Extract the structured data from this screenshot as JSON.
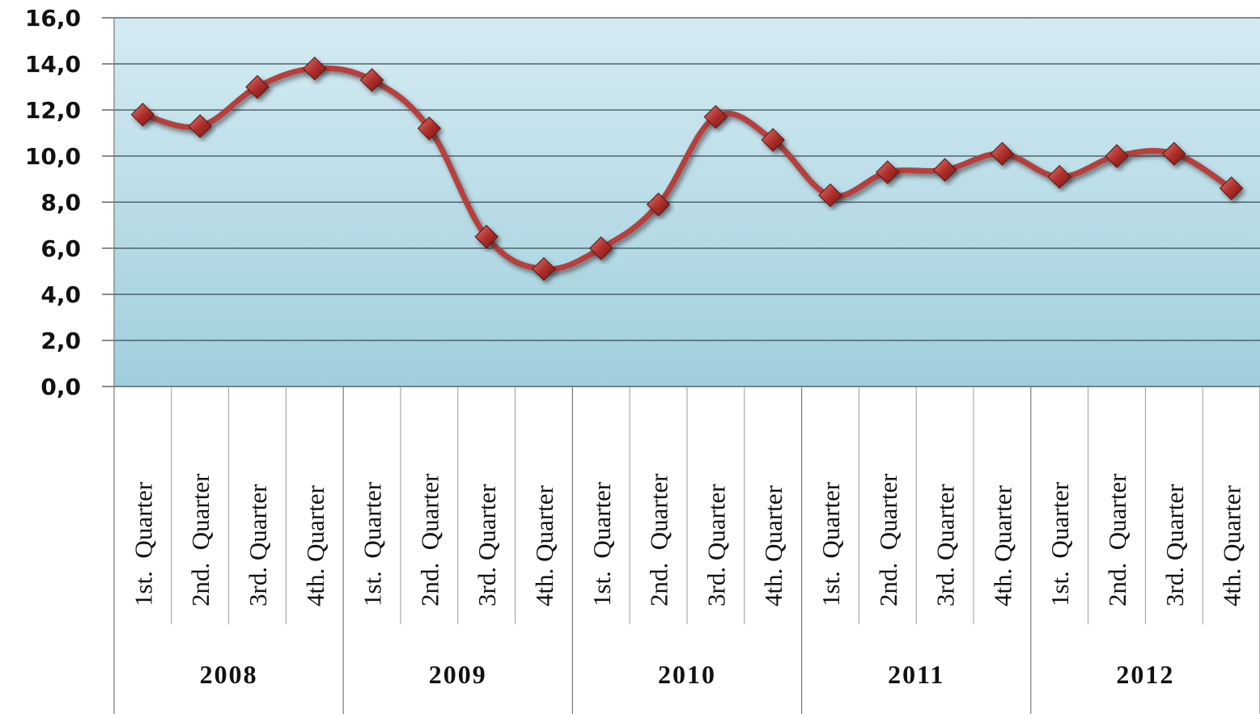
{
  "chart_data": {
    "type": "line",
    "title": "",
    "xlabel": "",
    "ylabel": "",
    "ylim": [
      0,
      16
    ],
    "yticks": [
      "0,0",
      "2,0",
      "4,0",
      "6,0",
      "8,0",
      "10,0",
      "12,0",
      "14,0",
      "16,0"
    ],
    "grid": true,
    "legend": "none",
    "groups": [
      {
        "label": "2008",
        "categories": [
          "1st.  Quarter",
          "2nd.  Quarter",
          "3rd. Quarter",
          "4th. Quarter"
        ]
      },
      {
        "label": "2009",
        "categories": [
          "1st.  Quarter",
          "2nd.  Quarter",
          "3rd. Quarter",
          "4th. Quarter"
        ]
      },
      {
        "label": "2010",
        "categories": [
          "1st.  Quarter",
          "2nd.  Quarter",
          "3rd. Quarter",
          "4th. Quarter"
        ]
      },
      {
        "label": "2011",
        "categories": [
          "1st.  Quarter",
          "2nd.  Quarter",
          "3rd. Quarter",
          "4th. Quarter"
        ]
      },
      {
        "label": "2012",
        "categories": [
          "1st.  Quarter",
          "2nd.  Quarter",
          "3rd. Quarter",
          "4th. Quarter"
        ]
      }
    ],
    "series": [
      {
        "values": [
          11.8,
          11.3,
          13.0,
          13.8,
          13.3,
          11.2,
          6.5,
          5.1,
          6.0,
          7.9,
          11.7,
          10.7,
          8.3,
          9.3,
          9.4,
          10.1,
          9.1,
          10.0,
          10.1,
          8.6
        ]
      }
    ],
    "colors": {
      "line": "#b5403e",
      "marker": "#b0302c",
      "plot_top": "#d5ebf2",
      "plot_bottom": "#9fcfdc",
      "gridline": "#3a4a52"
    }
  }
}
